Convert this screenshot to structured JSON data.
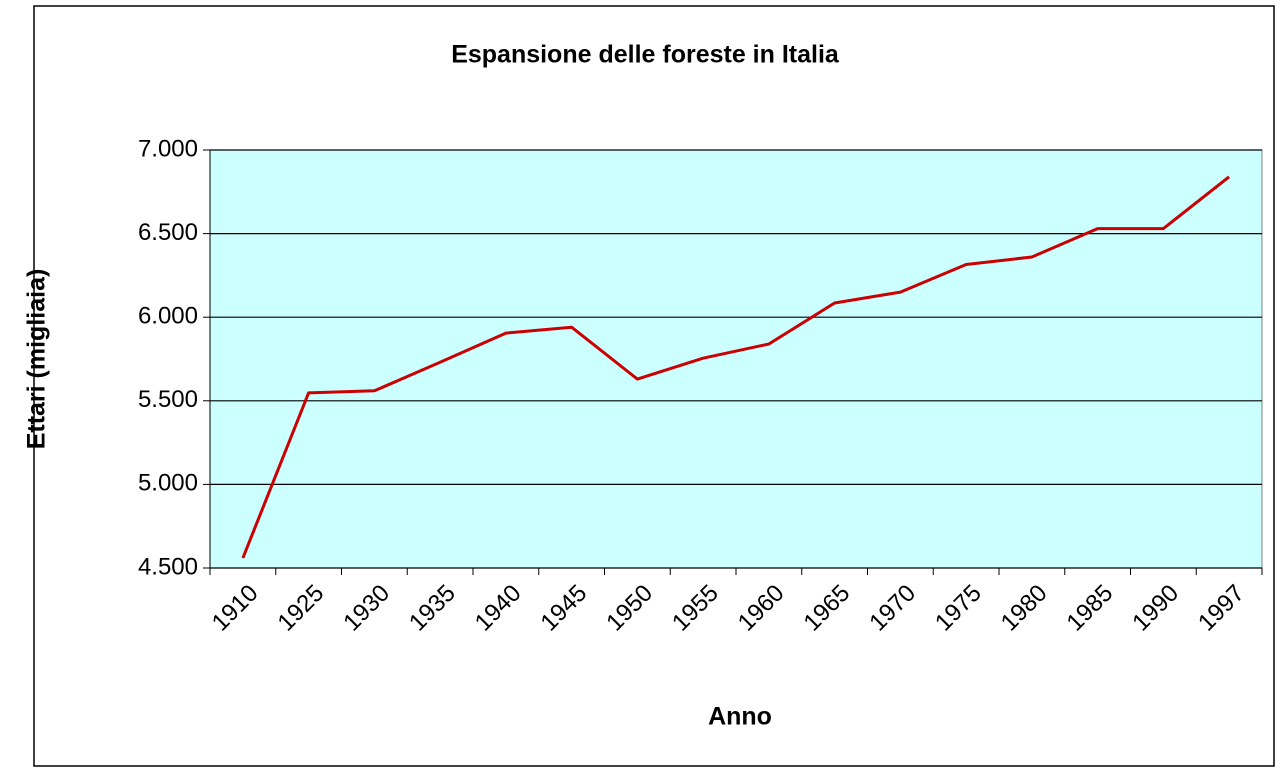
{
  "chart_data": {
    "type": "line",
    "title": "Espansione delle foreste in Italia",
    "x_label": "Anno",
    "y_label": "Ettari (migliaia)",
    "categories": [
      "1910",
      "1925",
      "1930",
      "1935",
      "1940",
      "1945",
      "1950",
      "1955",
      "1960",
      "1965",
      "1970",
      "1975",
      "1980",
      "1985",
      "1990",
      "1997"
    ],
    "series": [
      {
        "name": "Ettari",
        "color": "#cc0000",
        "values": [
          4560,
          5547,
          5560,
          5730,
          5905,
          5940,
          5630,
          5755,
          5840,
          6085,
          6150,
          6315,
          6360,
          6530,
          6530,
          6840
        ]
      }
    ],
    "ylim": [
      4500,
      7000
    ],
    "yticks": [
      {
        "value": 4500,
        "label": "4.500"
      },
      {
        "value": 5000,
        "label": "5.000"
      },
      {
        "value": 5500,
        "label": "5.500"
      },
      {
        "value": 6000,
        "label": "6.000"
      },
      {
        "value": 6500,
        "label": "6.500"
      },
      {
        "value": 7000,
        "label": "7.000"
      }
    ],
    "grid": true,
    "plot_background": "#ccffff"
  }
}
